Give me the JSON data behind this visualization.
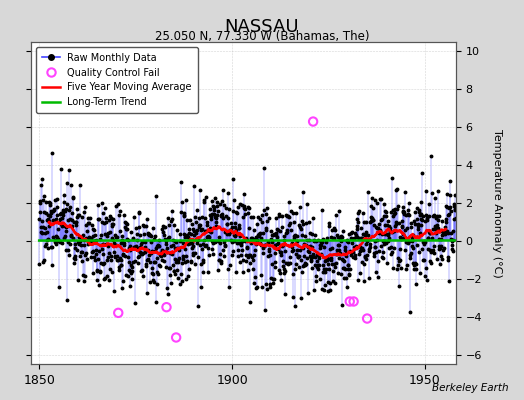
{
  "title": "NASSAU",
  "subtitle": "25.050 N, 77.330 W (Bahamas, The)",
  "ylabel": "Temperature Anomaly (°C)",
  "watermark": "Berkeley Earth",
  "xlim": [
    1848,
    1958
  ],
  "ylim": [
    -6.5,
    10.5
  ],
  "yticks": [
    -6,
    -4,
    -2,
    0,
    2,
    4,
    6,
    8,
    10
  ],
  "xticks": [
    1850,
    1900,
    1950
  ],
  "bg_color": "#d8d8d8",
  "plot_bg_color": "#ffffff",
  "line_color": "#4444ff",
  "raw_dot_color": "#000000",
  "qc_fail_color": "#ff44ff",
  "moving_avg_color": "#ff0000",
  "trend_color": "#00bb00",
  "seed": 17,
  "year_start": 1850,
  "year_end": 1957,
  "noise_std": 1.1,
  "qc_times": [
    1870.5,
    1883.0,
    1885.5,
    1921.0,
    1930.5,
    1931.5,
    1935.0
  ],
  "qc_values": [
    -3.8,
    -3.5,
    -5.1,
    6.3,
    -3.2,
    -3.2,
    -4.1
  ]
}
